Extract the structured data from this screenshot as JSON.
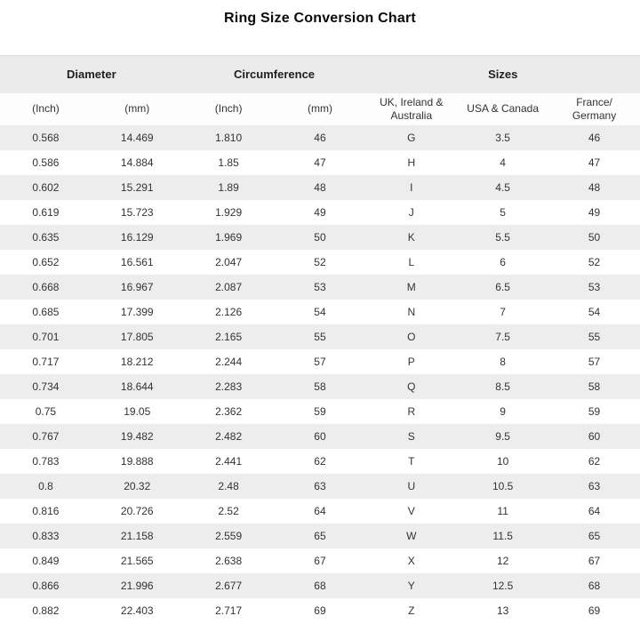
{
  "page": {
    "title": "Ring Size Conversion Chart"
  },
  "style": {
    "header_bg": "#ebebeb",
    "row_alt_bg": "#ededed",
    "row_bg": "#ffffff",
    "text_color": "#333333",
    "top_border_color": "#d8d8d8"
  },
  "chart_data": {
    "type": "table",
    "title": "Ring Size Conversion Chart",
    "group_headers": [
      {
        "label": "Diameter",
        "span": 2
      },
      {
        "label": "Circumference",
        "span": 2
      },
      {
        "label": "Sizes",
        "span": 3
      }
    ],
    "sub_headers": [
      "(Inch)",
      "(mm)",
      "(Inch)",
      "(mm)",
      "UK, Ireland & Australia",
      "USA & Canada",
      "France/ Germany"
    ],
    "columns": [
      "Diameter (Inch)",
      "Diameter (mm)",
      "Circumference (Inch)",
      "Circumference (mm)",
      "UK, Ireland & Australia size",
      "USA & Canada size",
      "France/ Germany size"
    ],
    "rows": [
      [
        "0.568",
        "14.469",
        "1.810",
        "46",
        "G",
        "3.5",
        "46"
      ],
      [
        "0.586",
        "14.884",
        "1.85",
        "47",
        "H",
        "4",
        "47"
      ],
      [
        "0.602",
        "15.291",
        "1.89",
        "48",
        "I",
        "4.5",
        "48"
      ],
      [
        "0.619",
        "15.723",
        "1.929",
        "49",
        "J",
        "5",
        "49"
      ],
      [
        "0.635",
        "16.129",
        "1.969",
        "50",
        "K",
        "5.5",
        "50"
      ],
      [
        "0.652",
        "16.561",
        "2.047",
        "52",
        "L",
        "6",
        "52"
      ],
      [
        "0.668",
        "16.967",
        "2.087",
        "53",
        "M",
        "6.5",
        "53"
      ],
      [
        "0.685",
        "17.399",
        "2.126",
        "54",
        "N",
        "7",
        "54"
      ],
      [
        "0.701",
        "17.805",
        "2.165",
        "55",
        "O",
        "7.5",
        "55"
      ],
      [
        "0.717",
        "18.212",
        "2.244",
        "57",
        "P",
        "8",
        "57"
      ],
      [
        "0.734",
        "18.644",
        "2.283",
        "58",
        "Q",
        "8.5",
        "58"
      ],
      [
        "0.75",
        "19.05",
        "2.362",
        "59",
        "R",
        "9",
        "59"
      ],
      [
        "0.767",
        "19.482",
        "2.482",
        "60",
        "S",
        "9.5",
        "60"
      ],
      [
        "0.783",
        "19.888",
        "2.441",
        "62",
        "T",
        "10",
        "62"
      ],
      [
        "0.8",
        "20.32",
        "2.48",
        "63",
        "U",
        "10.5",
        "63"
      ],
      [
        "0.816",
        "20.726",
        "2.52",
        "64",
        "V",
        "11",
        "64"
      ],
      [
        "0.833",
        "21.158",
        "2.559",
        "65",
        "W",
        "11.5",
        "65"
      ],
      [
        "0.849",
        "21.565",
        "2.638",
        "67",
        "X",
        "12",
        "67"
      ],
      [
        "0.866",
        "21.996",
        "2.677",
        "68",
        "Y",
        "12.5",
        "68"
      ],
      [
        "0.882",
        "22.403",
        "2.717",
        "69",
        "Z",
        "13",
        "69"
      ]
    ]
  }
}
